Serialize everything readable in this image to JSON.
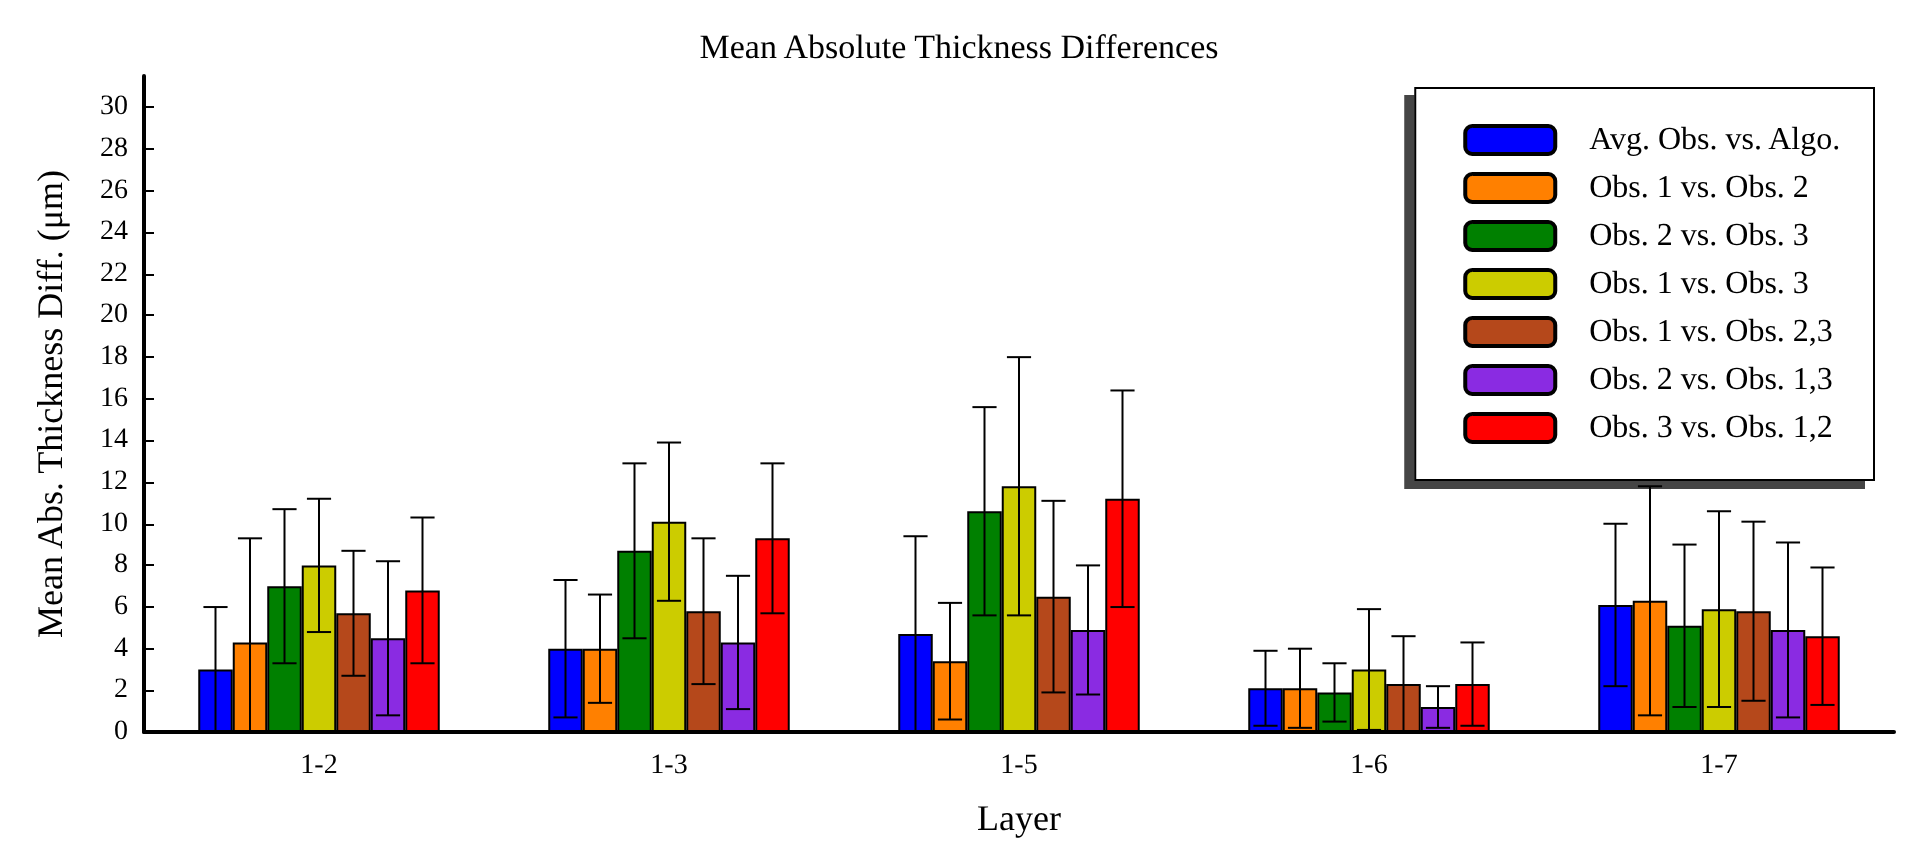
{
  "chart_data": {
    "type": "bar",
    "title": "Mean Absolute Thickness Differences",
    "xlabel": "Layer",
    "ylabel": "Mean Abs. Thickness Diff. (μm)",
    "categories": [
      "1-2",
      "1-3",
      "1-5",
      "1-6",
      "1-7"
    ],
    "series": [
      {
        "name": "Avg. Obs. vs. Algo.",
        "color": "#0000ff",
        "values": [
          3.0,
          4.0,
          4.7,
          2.1,
          6.1
        ],
        "errors": [
          3.0,
          3.3,
          4.7,
          1.8,
          3.9
        ]
      },
      {
        "name": "Obs. 1 vs. Obs. 2",
        "color": "#ff8000",
        "values": [
          4.3,
          4.0,
          3.4,
          2.1,
          6.3
        ],
        "errors": [
          [
            0,
            9.3
          ],
          2.6,
          2.8,
          1.9,
          5.5
        ]
      },
      {
        "name": "Obs. 2 vs. Obs. 3",
        "color": "#008000",
        "values": [
          7.0,
          8.7,
          10.6,
          1.9,
          5.1
        ],
        "errors": [
          3.7,
          4.2,
          5.0,
          1.4,
          3.9
        ]
      },
      {
        "name": "Obs. 1 vs. Obs. 3",
        "color": "#cccc00",
        "values": [
          8.0,
          10.1,
          11.8,
          3.0,
          5.9
        ],
        "errors": [
          3.2,
          3.8,
          6.2,
          2.9,
          4.7
        ]
      },
      {
        "name": "Obs. 1 vs. Obs. 2,3",
        "color": "#b5481b",
        "values": [
          5.7,
          5.8,
          6.5,
          2.3,
          5.8
        ],
        "errors": [
          3.0,
          3.5,
          4.6,
          2.3,
          4.3
        ]
      },
      {
        "name": "Obs. 2 vs. Obs. 1,3",
        "color": "#8a2be2",
        "values": [
          4.5,
          4.3,
          4.9,
          1.2,
          4.9
        ],
        "errors": [
          3.7,
          3.2,
          3.1,
          1.0,
          4.2
        ]
      },
      {
        "name": "Obs. 3 vs. Obs. 1,2",
        "color": "#ff0000",
        "values": [
          6.8,
          9.3,
          11.2,
          2.3,
          4.6
        ],
        "errors": [
          3.5,
          3.6,
          5.2,
          2.0,
          3.3
        ]
      }
    ],
    "ylim": [
      0,
      31.5
    ],
    "yticks": [
      0,
      2,
      4,
      6,
      8,
      10,
      12,
      14,
      16,
      18,
      20,
      22,
      24,
      26,
      28,
      30
    ],
    "grid": false,
    "legend": "top right"
  }
}
